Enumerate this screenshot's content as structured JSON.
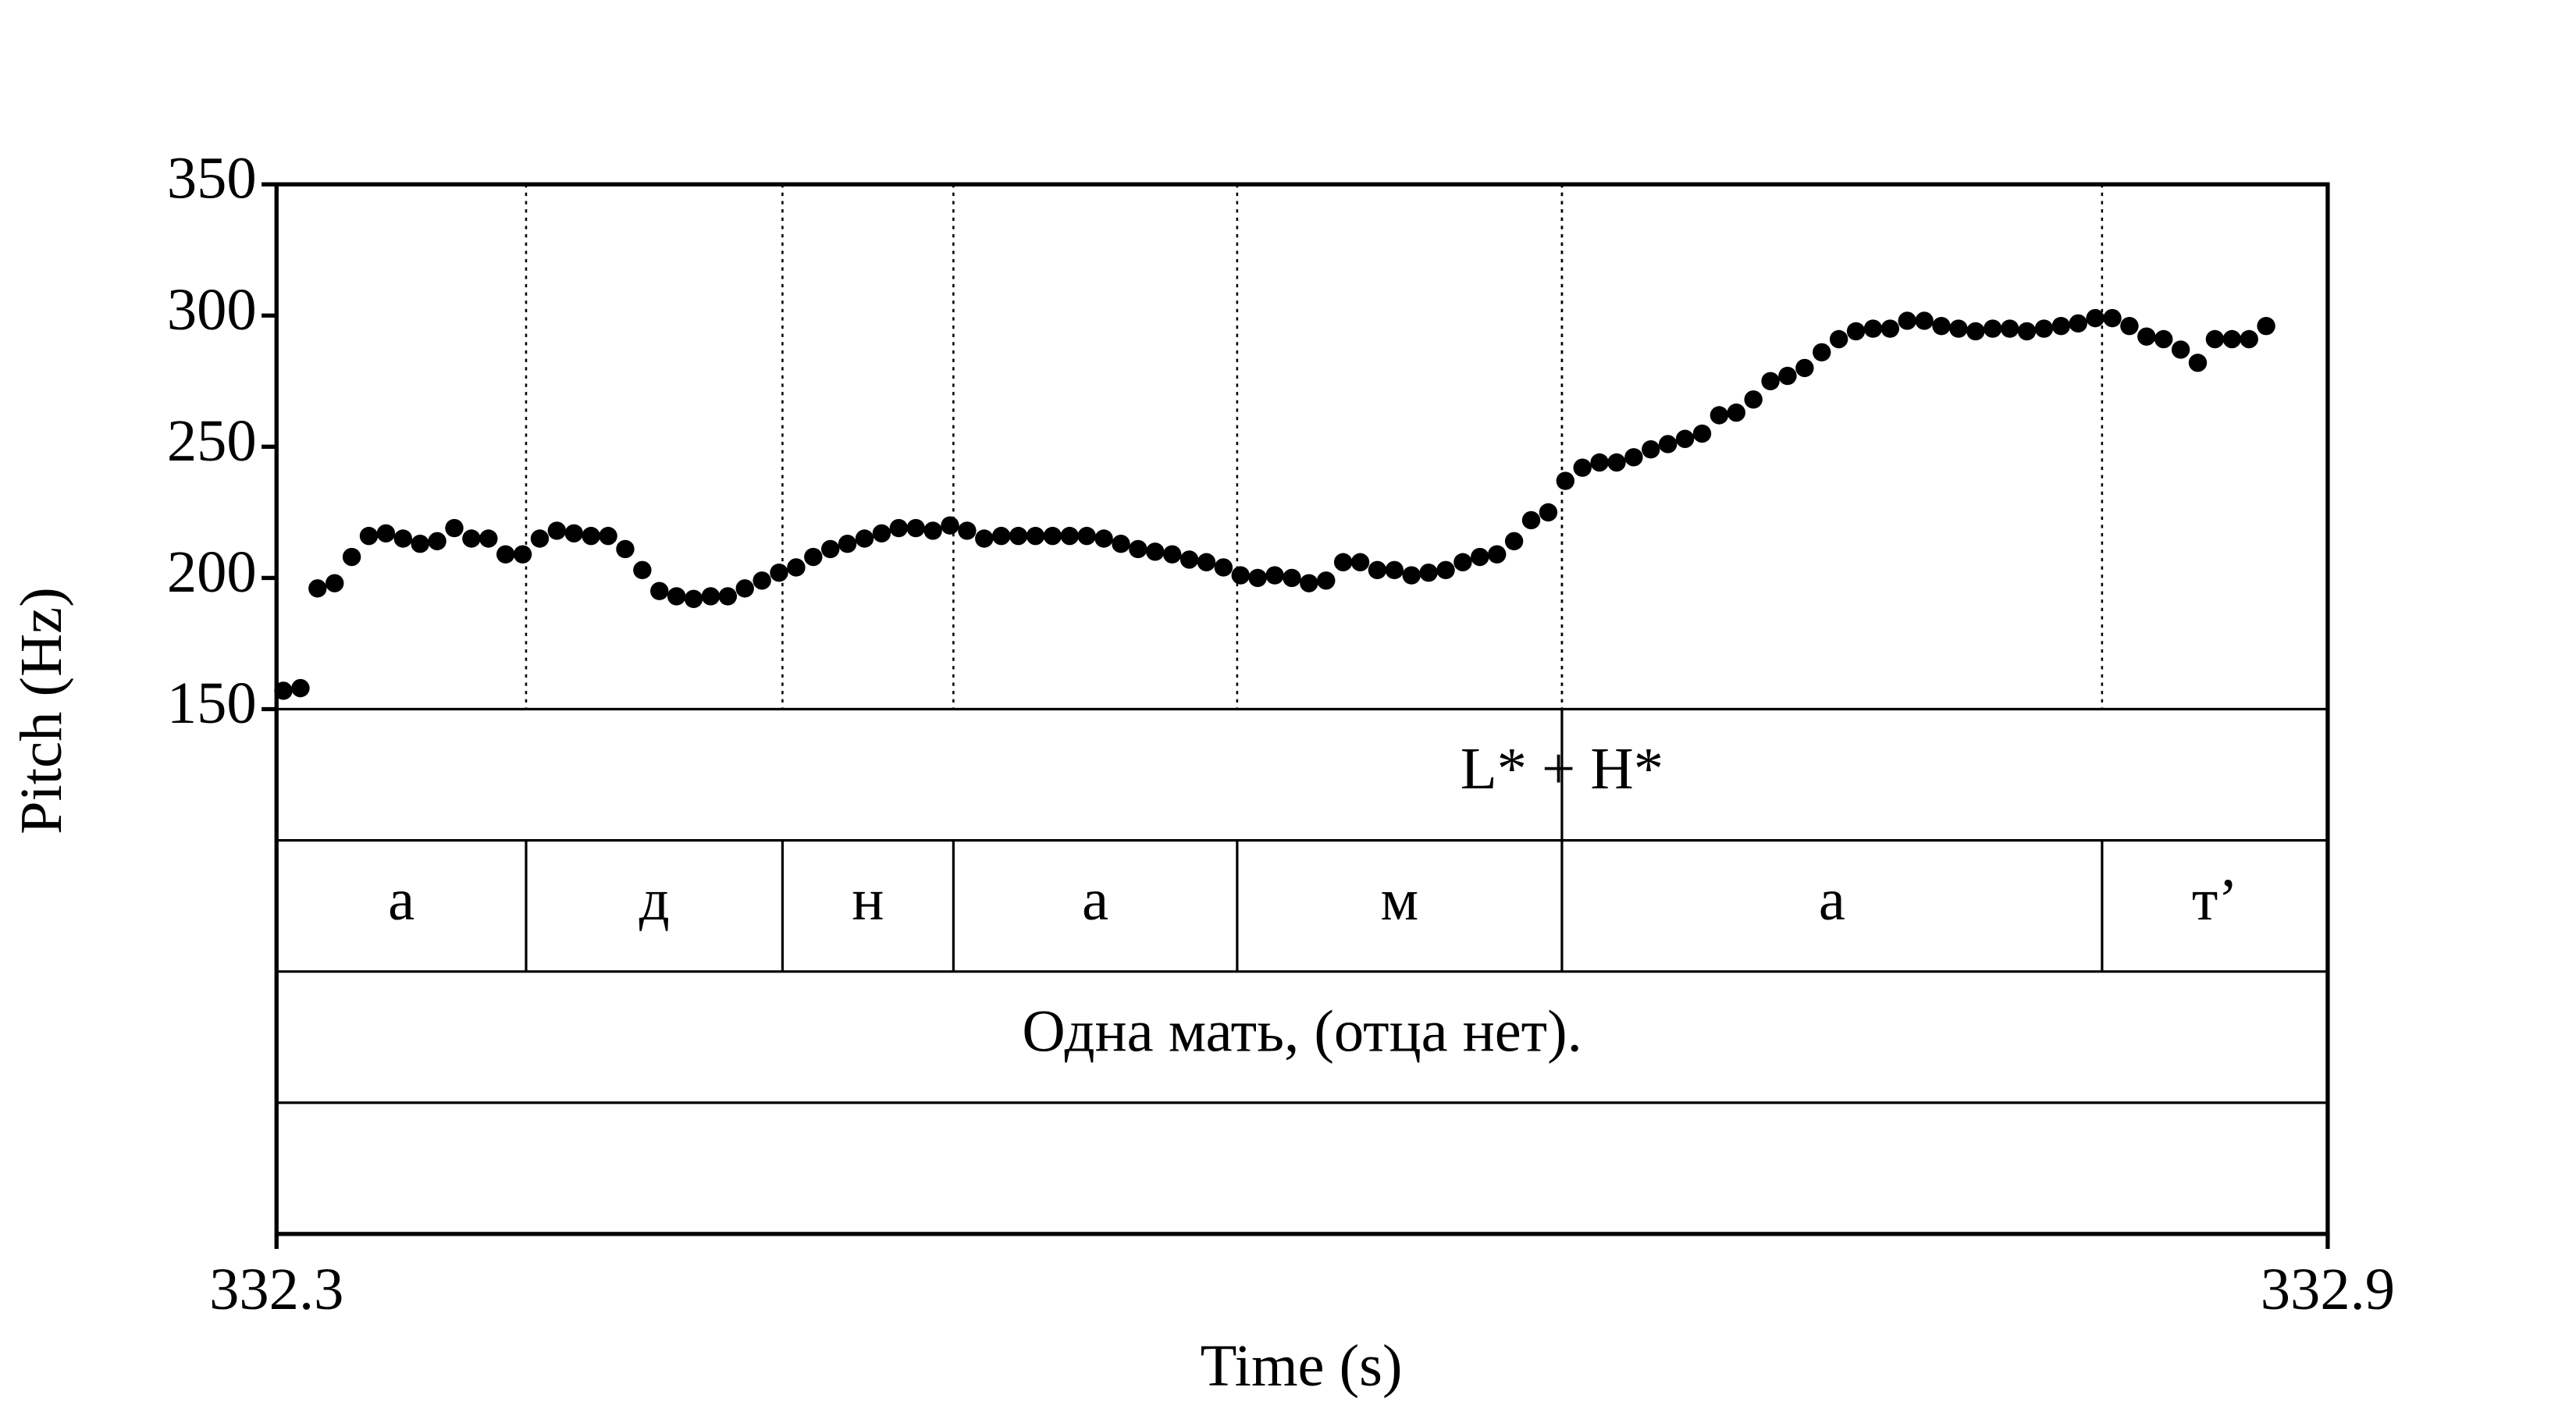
{
  "chart_data": {
    "type": "scatter",
    "color": "#000000",
    "x_label": "Time (s)",
    "y_label": "Pitch (Hz)",
    "xlim": [
      332.3,
      332.9
    ],
    "xticks": [
      332.3,
      332.9
    ],
    "ylim": [
      150,
      350
    ],
    "yticks": [
      150,
      200,
      250,
      300,
      350
    ],
    "x": [
      332.302,
      332.307,
      332.312,
      332.317,
      332.322,
      332.327,
      332.332,
      332.337,
      332.342,
      332.347,
      332.352,
      332.357,
      332.362,
      332.367,
      332.372,
      332.377,
      332.382,
      332.387,
      332.392,
      332.397,
      332.402,
      332.407,
      332.412,
      332.417,
      332.422,
      332.427,
      332.432,
      332.437,
      332.442,
      332.447,
      332.452,
      332.457,
      332.462,
      332.467,
      332.472,
      332.477,
      332.482,
      332.487,
      332.492,
      332.497,
      332.502,
      332.507,
      332.512,
      332.517,
      332.522,
      332.527,
      332.532,
      332.537,
      332.542,
      332.547,
      332.552,
      332.557,
      332.562,
      332.567,
      332.572,
      332.577,
      332.582,
      332.587,
      332.592,
      332.597,
      332.602,
      332.607,
      332.612,
      332.617,
      332.622,
      332.627,
      332.632,
      332.637,
      332.642,
      332.647,
      332.652,
      332.657,
      332.662,
      332.667,
      332.672,
      332.677,
      332.682,
      332.687,
      332.692,
      332.697,
      332.702,
      332.707,
      332.712,
      332.717,
      332.722,
      332.727,
      332.732,
      332.737,
      332.742,
      332.747,
      332.752,
      332.757,
      332.762,
      332.767,
      332.772,
      332.777,
      332.782,
      332.787,
      332.792,
      332.797,
      332.802,
      332.807,
      332.812,
      332.817,
      332.822,
      332.827,
      332.832,
      332.837,
      332.842,
      332.847,
      332.852,
      332.857,
      332.862,
      332.867,
      332.872,
      332.877,
      332.882
    ],
    "values": [
      157,
      158,
      196,
      198,
      208,
      216,
      217,
      215,
      213,
      214,
      219,
      215,
      215,
      209,
      209,
      215,
      218,
      217,
      216,
      216,
      211,
      203,
      195,
      193,
      192,
      193,
      193,
      196,
      199,
      202,
      204,
      208,
      211,
      213,
      215,
      217,
      219,
      219,
      218,
      220,
      218,
      215,
      216,
      216,
      216,
      216,
      216,
      216,
      215,
      213,
      211,
      210,
      209,
      207,
      206,
      204,
      201,
      200,
      201,
      200,
      198,
      199,
      206,
      206,
      203,
      203,
      201,
      202,
      203,
      206,
      208,
      209,
      214,
      222,
      225,
      237,
      242,
      244,
      244,
      246,
      249,
      251,
      253,
      255,
      262,
      263,
      268,
      275,
      277,
      280,
      286,
      291,
      294,
      295,
      295,
      298,
      298,
      296,
      295,
      294,
      295,
      295,
      294,
      295,
      296,
      297,
      299,
      299,
      296,
      292,
      291,
      287,
      282,
      291,
      291,
      291,
      296
    ],
    "tiers": [
      {
        "points": [
          332.676
        ],
        "labels": [
          "L* + H*"
        ]
      },
      {
        "boundaries": [
          332.373,
          332.448,
          332.498,
          332.581,
          332.676,
          332.834
        ],
        "labels": [
          "а",
          "д",
          "н",
          "а",
          "м",
          "а",
          "т’"
        ]
      },
      {
        "labels": [
          "Одна мать, (отца нет)."
        ]
      }
    ]
  }
}
